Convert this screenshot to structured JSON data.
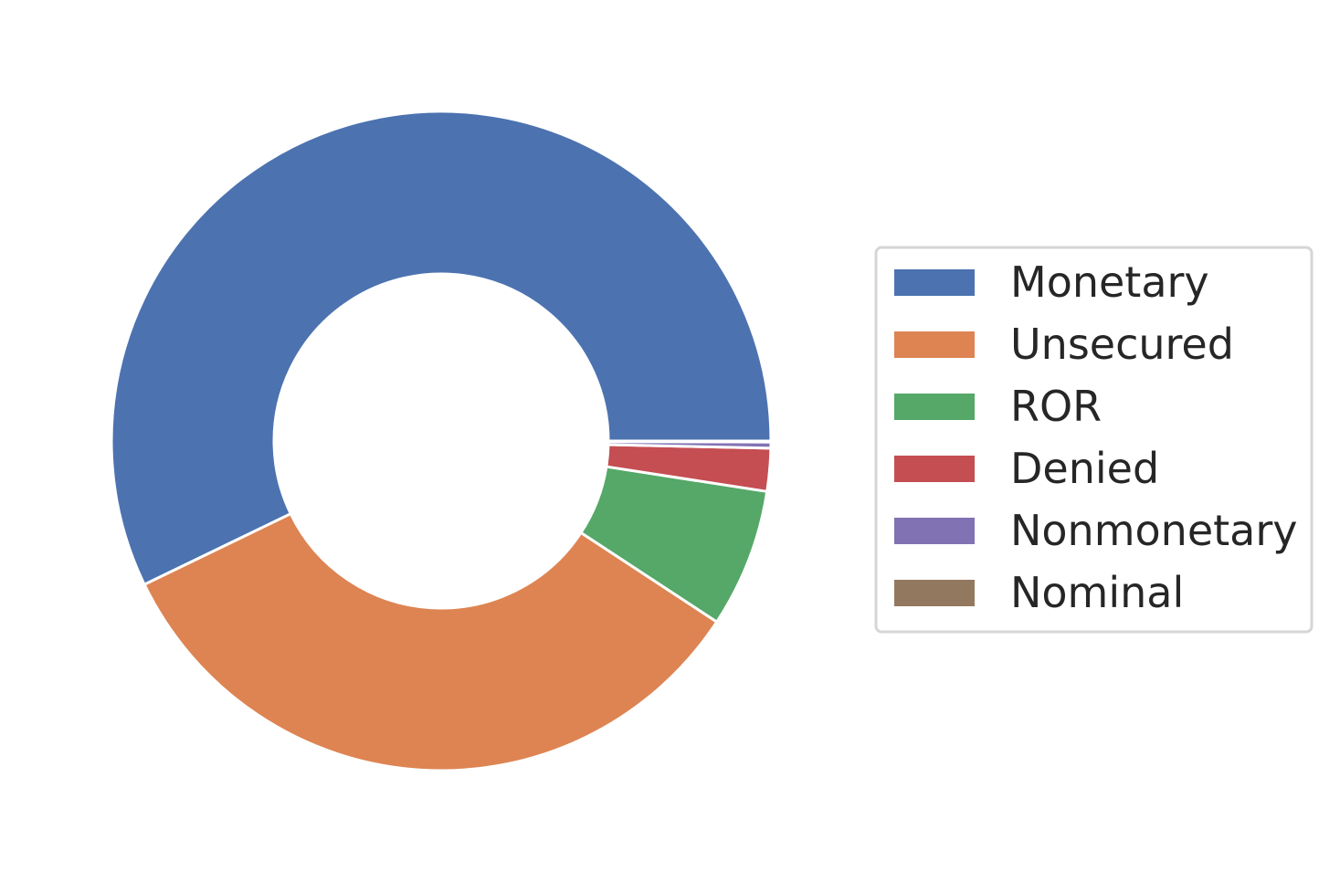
{
  "chart_data": {
    "type": "pie",
    "variant": "donut",
    "labels": [
      "Monetary",
      "Unsecured",
      "ROR",
      "Denied",
      "Nonmonetary",
      "Nominal"
    ],
    "values": [
      57.2,
      33.6,
      6.8,
      2.1,
      0.3,
      0.05
    ],
    "colors": [
      "#4c72b0",
      "#dd8452",
      "#55a868",
      "#c44e52",
      "#8172b3",
      "#937860"
    ],
    "start_angle_deg": 0,
    "direction": "counterclockwise",
    "legend": {
      "placement": "right"
    },
    "title": "",
    "xlabel": "",
    "ylabel": ""
  }
}
